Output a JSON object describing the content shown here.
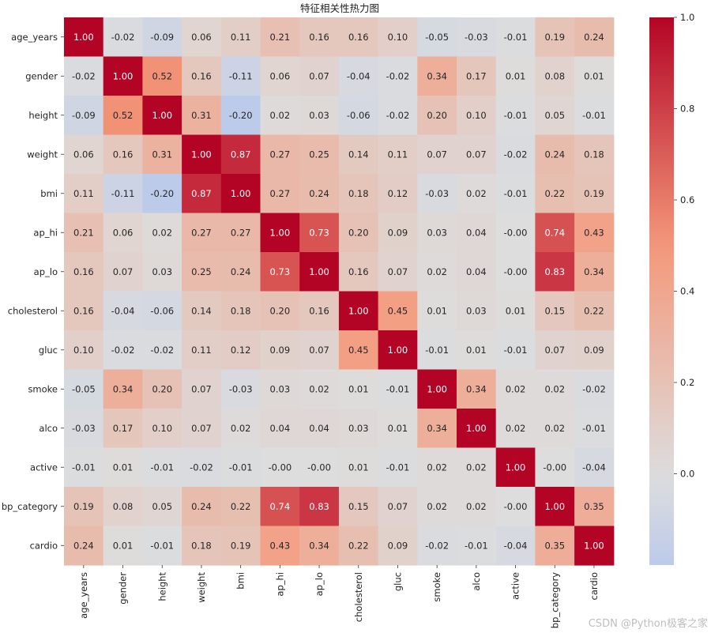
{
  "chart_data": {
    "type": "heatmap",
    "title": "特征相关性热力图",
    "xlabel": "",
    "ylabel": "",
    "labels": [
      "age_years",
      "gender",
      "height",
      "weight",
      "bmi",
      "ap_hi",
      "ap_lo",
      "cholesterol",
      "gluc",
      "smoke",
      "alco",
      "active",
      "bp_category",
      "cardio"
    ],
    "values": [
      [
        1.0,
        -0.02,
        -0.09,
        0.06,
        0.11,
        0.21,
        0.16,
        0.16,
        0.1,
        -0.05,
        -0.03,
        -0.01,
        0.19,
        0.24
      ],
      [
        -0.02,
        1.0,
        0.52,
        0.16,
        -0.11,
        0.06,
        0.07,
        -0.04,
        -0.02,
        0.34,
        0.17,
        0.01,
        0.08,
        0.01
      ],
      [
        -0.09,
        0.52,
        1.0,
        0.31,
        -0.2,
        0.02,
        0.03,
        -0.06,
        -0.02,
        0.2,
        0.1,
        -0.01,
        0.05,
        -0.01
      ],
      [
        0.06,
        0.16,
        0.31,
        1.0,
        0.87,
        0.27,
        0.25,
        0.14,
        0.11,
        0.07,
        0.07,
        -0.02,
        0.24,
        0.18
      ],
      [
        0.11,
        -0.11,
        -0.2,
        0.87,
        1.0,
        0.27,
        0.24,
        0.18,
        0.12,
        -0.03,
        0.02,
        -0.01,
        0.22,
        0.19
      ],
      [
        0.21,
        0.06,
        0.02,
        0.27,
        0.27,
        1.0,
        0.73,
        0.2,
        0.09,
        0.03,
        0.04,
        -0.0,
        0.74,
        0.43
      ],
      [
        0.16,
        0.07,
        0.03,
        0.25,
        0.24,
        0.73,
        1.0,
        0.16,
        0.07,
        0.02,
        0.04,
        -0.0,
        0.83,
        0.34
      ],
      [
        0.16,
        -0.04,
        -0.06,
        0.14,
        0.18,
        0.2,
        0.16,
        1.0,
        0.45,
        0.01,
        0.03,
        0.01,
        0.15,
        0.22
      ],
      [
        0.1,
        -0.02,
        -0.02,
        0.11,
        0.12,
        0.09,
        0.07,
        0.45,
        1.0,
        -0.01,
        0.01,
        -0.01,
        0.07,
        0.09
      ],
      [
        -0.05,
        0.34,
        0.2,
        0.07,
        -0.03,
        0.03,
        0.02,
        0.01,
        -0.01,
        1.0,
        0.34,
        0.02,
        0.02,
        -0.02
      ],
      [
        -0.03,
        0.17,
        0.1,
        0.07,
        0.02,
        0.04,
        0.04,
        0.03,
        0.01,
        0.34,
        1.0,
        0.02,
        0.02,
        -0.01
      ],
      [
        -0.01,
        0.01,
        -0.01,
        -0.02,
        -0.01,
        -0.0,
        -0.0,
        0.01,
        -0.01,
        0.02,
        0.02,
        1.0,
        -0.0,
        -0.04
      ],
      [
        0.19,
        0.08,
        0.05,
        0.24,
        0.22,
        0.74,
        0.83,
        0.15,
        0.07,
        0.02,
        0.02,
        -0.0,
        1.0,
        0.35
      ],
      [
        0.24,
        0.01,
        -0.01,
        0.18,
        0.19,
        0.43,
        0.34,
        0.22,
        0.09,
        -0.02,
        -0.01,
        -0.04,
        0.35,
        1.0
      ]
    ],
    "annotation_format": "0.00",
    "colormap": "coolwarm",
    "vmin": -0.2,
    "vmax": 1.0,
    "center": 0.0,
    "colorbar_ticks": [
      0.0,
      0.2,
      0.4,
      0.6,
      0.8,
      1.0
    ],
    "colorbar_tick_labels": [
      "0.0",
      "0.2",
      "0.4",
      "0.6",
      "0.8",
      "1.0"
    ],
    "grid": false,
    "legend": "colorbar-right"
  },
  "watermark": "CSDN @Python极客之家"
}
